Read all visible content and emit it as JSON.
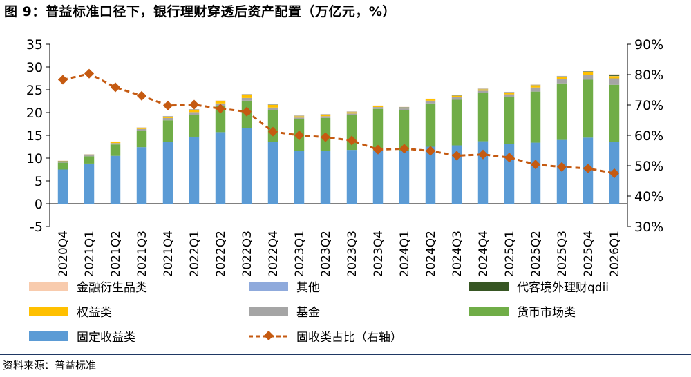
{
  "title": "图 9：普益标准口径下，银行理财穿透后资产配置（万亿元，%）",
  "source": "资料来源：普益标准",
  "chart_data": {
    "type": "bar",
    "stacked": true,
    "categories": [
      "2020Q4",
      "2021Q1",
      "2021Q2",
      "2021Q3",
      "2021Q4",
      "2022Q1",
      "2022Q2",
      "2022Q3",
      "2022Q4",
      "2023Q1",
      "2023Q2",
      "2023Q3",
      "2023Q4",
      "2024Q1",
      "2024Q2",
      "2024Q3",
      "2024Q4",
      "2025Q1",
      "2025Q2",
      "2025Q3",
      "2025Q4",
      "2026Q1"
    ],
    "y_left": {
      "min": -5,
      "max": 35,
      "ticks": [
        "35",
        "30",
        "25",
        "20",
        "15",
        "10",
        "5",
        "0",
        "-5"
      ]
    },
    "y_right": {
      "min": 30,
      "max": 90,
      "ticks": [
        "90%",
        "80%",
        "70%",
        "60%",
        "50%",
        "40%",
        "30%"
      ]
    },
    "series": [
      {
        "name": "固定收益类",
        "color": "#5b9bd5",
        "values": [
          7.5,
          8.8,
          10.5,
          12.4,
          13.5,
          14.7,
          15.7,
          16.6,
          13.6,
          11.6,
          11.6,
          11.8,
          11.7,
          11.6,
          12.5,
          12.8,
          13.7,
          13.1,
          13.4,
          14.0,
          14.5,
          13.5
        ]
      },
      {
        "name": "货币市场类",
        "color": "#70ad47",
        "values": [
          1.5,
          1.6,
          2.5,
          3.6,
          4.8,
          4.8,
          5.7,
          6.0,
          7.0,
          6.9,
          7.2,
          7.6,
          9.1,
          9.0,
          9.5,
          10.0,
          10.6,
          10.3,
          11.2,
          12.4,
          12.7,
          12.6
        ]
      },
      {
        "name": "基金",
        "color": "#a5a5a5",
        "values": [
          0.2,
          0.2,
          0.3,
          0.4,
          0.5,
          0.6,
          0.6,
          0.6,
          0.5,
          0.4,
          0.4,
          0.4,
          0.4,
          0.3,
          0.6,
          0.6,
          0.5,
          0.6,
          0.9,
          1.0,
          1.1,
          1.4
        ]
      },
      {
        "name": "权益类",
        "color": "#ffc000",
        "values": [
          0.1,
          0.1,
          0.2,
          0.2,
          0.3,
          0.5,
          0.5,
          0.7,
          0.6,
          0.3,
          0.3,
          0.3,
          0.2,
          0.2,
          0.3,
          0.3,
          0.3,
          0.4,
          0.5,
          0.5,
          0.6,
          0.5
        ]
      },
      {
        "name": "其他",
        "color": "#8faadc",
        "values": [
          0.05,
          0.05,
          0.05,
          0.05,
          0.05,
          0.05,
          0.05,
          0.05,
          0.05,
          0.05,
          0.05,
          0.05,
          0.05,
          0.05,
          0.05,
          0.05,
          0.05,
          0.05,
          0.05,
          0.05,
          0.05,
          0.05
        ]
      },
      {
        "name": "代客境外理财qdii",
        "color": "#375623",
        "values": [
          0.05,
          0.05,
          0.05,
          0.05,
          0.05,
          0.05,
          0.05,
          0.05,
          0.05,
          0.05,
          0.05,
          0.05,
          0.05,
          0.05,
          0.05,
          0.05,
          0.05,
          0.05,
          0.05,
          0.05,
          0.1,
          0.3
        ]
      },
      {
        "name": "金融衍生品类",
        "color": "#f8cbad",
        "values": [
          0.05,
          0.05,
          0.05,
          0.05,
          0.05,
          0.05,
          0.05,
          0.05,
          0.05,
          0.05,
          0.05,
          0.05,
          0.05,
          0.05,
          0.05,
          0.05,
          0.05,
          0.05,
          0.05,
          0.05,
          0.05,
          0.05
        ]
      }
    ],
    "line": {
      "name": "固收类占比（右轴）",
      "color": "#c55a11",
      "marker_color": "#c55a11",
      "values": [
        78.3,
        80.3,
        75.8,
        73.0,
        69.8,
        70.1,
        68.8,
        67.8,
        61.2,
        60.0,
        59.4,
        58.3,
        55.3,
        55.6,
        54.9,
        53.3,
        53.7,
        52.7,
        50.4,
        49.6,
        49.1,
        47.5
      ]
    }
  },
  "legend": [
    {
      "key": "金融衍生品类",
      "label": "金融衍生品类",
      "type": "box",
      "color": "#f8cbad"
    },
    {
      "key": "其他",
      "label": "其他",
      "type": "box",
      "color": "#8faadc"
    },
    {
      "key": "代客境外理财qdii",
      "label": "代客境外理财qdii",
      "type": "box",
      "color": "#375623"
    },
    {
      "key": "权益类",
      "label": "权益类",
      "type": "box",
      "color": "#ffc000"
    },
    {
      "key": "基金",
      "label": "基金",
      "type": "box",
      "color": "#a5a5a5"
    },
    {
      "key": "货币市场类",
      "label": "货币市场类",
      "type": "box",
      "color": "#70ad47"
    },
    {
      "key": "固定收益类",
      "label": "固定收益类",
      "type": "box",
      "color": "#5b9bd5"
    },
    {
      "key": "固收类占比",
      "label": "固收类占比（右轴）",
      "type": "line",
      "color": "#c55a11"
    }
  ]
}
